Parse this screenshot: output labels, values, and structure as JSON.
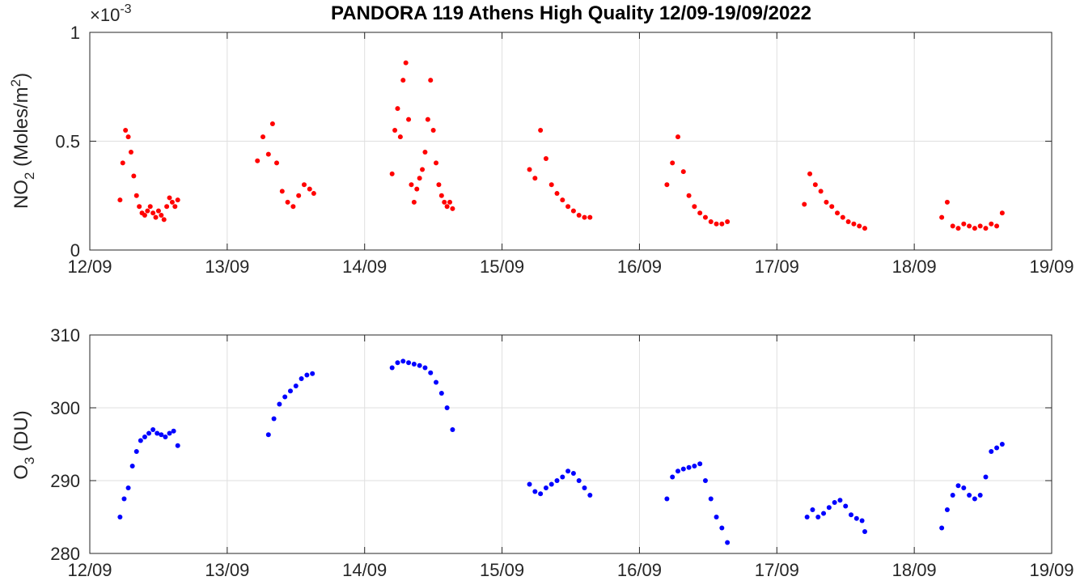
{
  "chart_data": [
    {
      "type": "scatter",
      "title": "PANDORA 119 Athens High Quality 12/09-19/09/2022",
      "ylabel_main": "NO",
      "ylabel_sub": "2",
      "ylabel_rest": " (Moles/m",
      "ylabel_sup": "2",
      "ylabel_end": ")",
      "exponent_base": "×10",
      "exponent_power": "-3",
      "xlim": [
        0,
        7
      ],
      "ylim": [
        0,
        1
      ],
      "x_tick_values": [
        0,
        1,
        2,
        3,
        4,
        5,
        6,
        7
      ],
      "x_tick_labels": [
        "12/09",
        "13/09",
        "14/09",
        "15/09",
        "16/09",
        "17/09",
        "18/09",
        "19/09"
      ],
      "y_tick_values": [
        0,
        0.5,
        1
      ],
      "y_tick_labels": [
        "0",
        "0.5",
        "1"
      ],
      "grid": true,
      "color": "#ff0000",
      "series": [
        {
          "x": [
            0.22,
            0.24,
            0.26,
            0.28,
            0.3,
            0.32,
            0.34,
            0.36,
            0.38,
            0.4,
            0.42,
            0.44,
            0.46,
            0.48,
            0.5,
            0.52,
            0.54,
            0.56,
            0.58,
            0.6,
            0.62,
            0.64,
            1.22,
            1.26,
            1.3,
            1.33,
            1.36,
            1.4,
            1.44,
            1.48,
            1.52,
            1.56,
            1.6,
            1.63,
            2.2,
            2.22,
            2.24,
            2.26,
            2.28,
            2.3,
            2.32,
            2.34,
            2.36,
            2.38,
            2.4,
            2.42,
            2.44,
            2.46,
            2.48,
            2.5,
            2.52,
            2.54,
            2.56,
            2.58,
            2.6,
            2.62,
            2.64,
            3.2,
            3.24,
            3.28,
            3.32,
            3.36,
            3.4,
            3.44,
            3.48,
            3.52,
            3.56,
            3.6,
            3.64,
            4.2,
            4.24,
            4.28,
            4.32,
            4.36,
            4.4,
            4.44,
            4.48,
            4.52,
            4.56,
            4.6,
            4.64,
            5.2,
            5.24,
            5.28,
            5.32,
            5.36,
            5.4,
            5.44,
            5.48,
            5.52,
            5.56,
            5.6,
            5.64,
            6.2,
            6.24,
            6.28,
            6.32,
            6.36,
            6.4,
            6.44,
            6.48,
            6.52,
            6.56,
            6.6,
            6.64
          ],
          "y": [
            0.23,
            0.4,
            0.55,
            0.52,
            0.45,
            0.34,
            0.25,
            0.2,
            0.17,
            0.16,
            0.18,
            0.2,
            0.17,
            0.15,
            0.18,
            0.16,
            0.14,
            0.2,
            0.24,
            0.22,
            0.2,
            0.23,
            0.41,
            0.52,
            0.44,
            0.58,
            0.4,
            0.27,
            0.22,
            0.2,
            0.25,
            0.3,
            0.28,
            0.26,
            0.35,
            0.55,
            0.65,
            0.52,
            0.78,
            0.86,
            0.6,
            0.3,
            0.22,
            0.28,
            0.33,
            0.37,
            0.45,
            0.6,
            0.78,
            0.55,
            0.4,
            0.3,
            0.25,
            0.22,
            0.2,
            0.22,
            0.19,
            0.37,
            0.33,
            0.55,
            0.42,
            0.3,
            0.26,
            0.23,
            0.2,
            0.18,
            0.16,
            0.15,
            0.15,
            0.3,
            0.4,
            0.52,
            0.36,
            0.25,
            0.2,
            0.17,
            0.15,
            0.13,
            0.12,
            0.12,
            0.13,
            0.21,
            0.35,
            0.3,
            0.27,
            0.22,
            0.2,
            0.17,
            0.15,
            0.13,
            0.12,
            0.11,
            0.1,
            0.15,
            0.22,
            0.11,
            0.1,
            0.12,
            0.11,
            0.1,
            0.11,
            0.1,
            0.12,
            0.11,
            0.17
          ]
        }
      ]
    },
    {
      "type": "scatter",
      "ylabel_main": "O",
      "ylabel_sub": "3",
      "ylabel_rest": " (DU)",
      "xlim": [
        0,
        7
      ],
      "ylim": [
        280,
        310
      ],
      "x_tick_values": [
        0,
        1,
        2,
        3,
        4,
        5,
        6,
        7
      ],
      "x_tick_labels": [
        "12/09",
        "13/09",
        "14/09",
        "15/09",
        "16/09",
        "17/09",
        "18/09",
        "19/09"
      ],
      "y_tick_values": [
        280,
        290,
        300,
        310
      ],
      "y_tick_labels": [
        "280",
        "290",
        "300",
        "310"
      ],
      "grid": true,
      "color": "#0000ff",
      "series": [
        {
          "x": [
            0.22,
            0.25,
            0.28,
            0.31,
            0.34,
            0.37,
            0.4,
            0.43,
            0.46,
            0.49,
            0.52,
            0.55,
            0.58,
            0.61,
            0.64,
            1.3,
            1.34,
            1.38,
            1.42,
            1.46,
            1.5,
            1.54,
            1.58,
            1.62,
            2.2,
            2.24,
            2.28,
            2.32,
            2.36,
            2.4,
            2.44,
            2.48,
            2.52,
            2.56,
            2.6,
            2.64,
            3.2,
            3.24,
            3.28,
            3.32,
            3.36,
            3.4,
            3.44,
            3.48,
            3.52,
            3.56,
            3.6,
            3.64,
            4.2,
            4.24,
            4.28,
            4.32,
            4.36,
            4.4,
            4.44,
            4.48,
            4.52,
            4.56,
            4.6,
            4.64,
            5.22,
            5.26,
            5.3,
            5.34,
            5.38,
            5.42,
            5.46,
            5.5,
            5.54,
            5.58,
            5.62,
            5.64,
            6.2,
            6.24,
            6.28,
            6.32,
            6.36,
            6.4,
            6.44,
            6.48,
            6.52,
            6.56,
            6.6,
            6.64
          ],
          "y": [
            285.0,
            287.5,
            289.0,
            292.0,
            294.0,
            295.5,
            296.0,
            296.5,
            297.0,
            296.5,
            296.3,
            296.0,
            296.5,
            296.8,
            294.8,
            296.3,
            298.5,
            300.5,
            301.5,
            302.3,
            303.0,
            304.0,
            304.5,
            304.7,
            305.5,
            306.2,
            306.4,
            306.2,
            306.0,
            305.8,
            305.5,
            304.8,
            303.5,
            302.0,
            300.0,
            297.0,
            289.5,
            288.5,
            288.2,
            289.0,
            289.5,
            290.0,
            290.5,
            291.3,
            291.0,
            290.0,
            289.0,
            288.0,
            287.5,
            290.5,
            291.3,
            291.6,
            291.8,
            292.0,
            292.3,
            290.0,
            287.5,
            285.0,
            283.5,
            281.5,
            285.0,
            286.0,
            285.0,
            285.5,
            286.3,
            287.0,
            287.3,
            286.5,
            285.3,
            284.8,
            284.5,
            283.0,
            283.5,
            286.0,
            288.0,
            289.3,
            289.0,
            288.0,
            287.5,
            288.0,
            290.5,
            294.0,
            294.5,
            295.0
          ]
        }
      ]
    }
  ]
}
